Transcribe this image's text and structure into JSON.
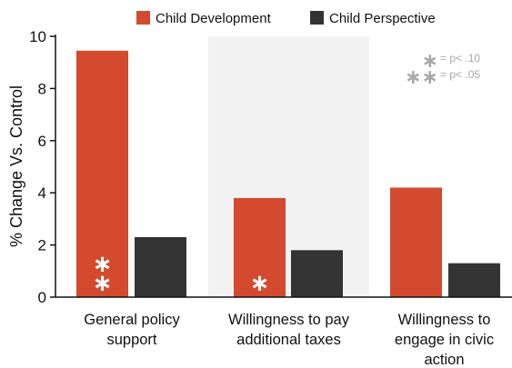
{
  "chart_data": {
    "type": "bar",
    "categories": [
      [
        "General policy",
        "support"
      ],
      [
        "Willingness to pay",
        "additional taxes"
      ],
      [
        "Willingness to",
        "engage in civic",
        "action"
      ]
    ],
    "series": [
      {
        "name": "Child Development",
        "color": "#d34a2e",
        "values": [
          9.45,
          3.8,
          4.2
        ]
      },
      {
        "name": "Child Perspective",
        "color": "#333333",
        "values": [
          2.3,
          1.8,
          1.3
        ]
      }
    ],
    "significance": [
      [
        "∗",
        "∗"
      ],
      [
        "∗"
      ],
      []
    ],
    "ylabel": "% Change Vs. Control",
    "xlabel": "",
    "ylim": [
      0,
      10
    ],
    "yticks": [
      0,
      2,
      4,
      6,
      8,
      10
    ],
    "highlight_category": 1,
    "highlight_color": "#f2f2f2",
    "legend_position": "top",
    "notes": [
      {
        "stars": "∗",
        "text": "= p< .10"
      },
      {
        "stars": "∗∗",
        "text": "= p< .05"
      }
    ]
  }
}
